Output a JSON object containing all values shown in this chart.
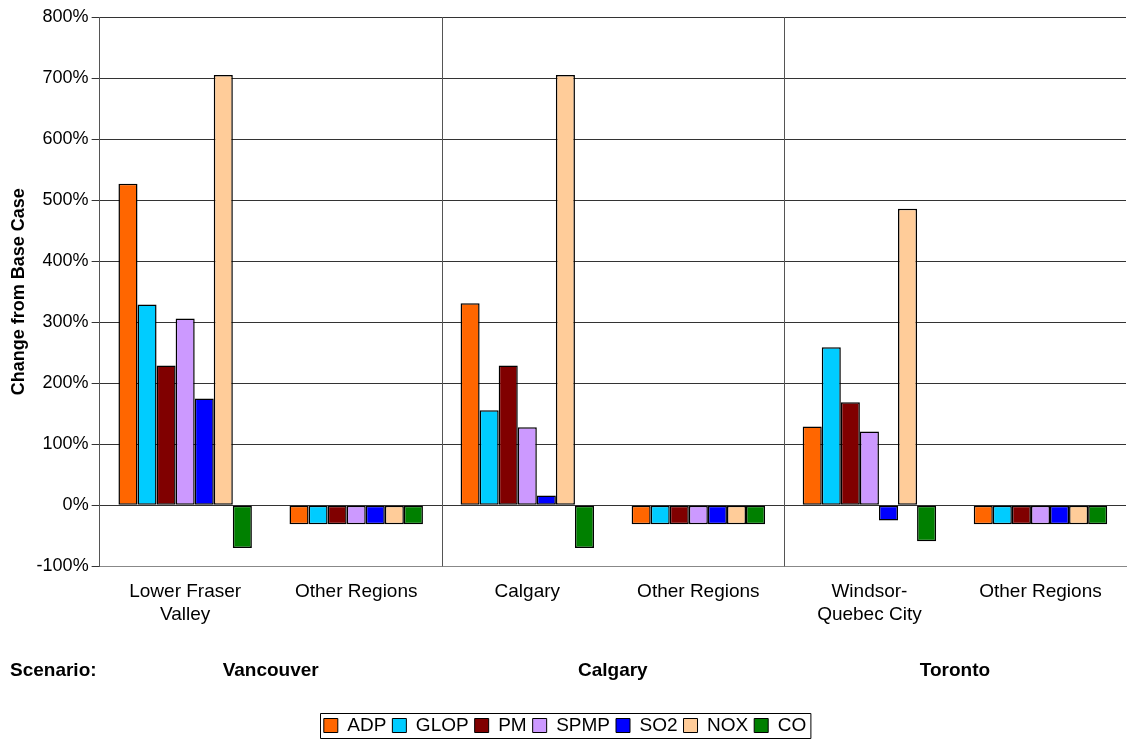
{
  "chart_data": {
    "type": "bar",
    "ylabel": "Change from Base Case",
    "categories": [
      "Lower Fraser Valley",
      "Other Regions",
      "Calgary",
      "Other Regions",
      "Windsor-Quebec City",
      "Other Regions"
    ],
    "series": [
      {
        "name": "ADP",
        "color": "#ff6600",
        "values": [
          527,
          -31,
          331,
          -31,
          129,
          -31
        ]
      },
      {
        "name": "GLOP",
        "color": "#00ccff",
        "values": [
          329,
          -31,
          156,
          -31,
          259,
          -31
        ]
      },
      {
        "name": "PM",
        "color": "#800000",
        "values": [
          229,
          -31,
          229,
          -31,
          169,
          -31
        ]
      },
      {
        "name": "SPMP",
        "color": "#cc99ff",
        "values": [
          306,
          -31,
          128,
          -31,
          121,
          -31
        ]
      },
      {
        "name": "SO2",
        "color": "#0000ff",
        "values": [
          175,
          -31,
          16,
          -31,
          -25,
          -31
        ]
      },
      {
        "name": "NOX",
        "color": "#ffcc99",
        "values": [
          705,
          -31,
          705,
          -31,
          486,
          -31
        ]
      },
      {
        "name": "CO",
        "color": "#008000",
        "values": [
          -70,
          -31,
          -70,
          -31,
          -59,
          -31
        ]
      }
    ],
    "annotations": [
      "Scenario:",
      "Vancouver",
      "Calgary",
      "Toronto"
    ],
    "ylim": [
      -100,
      800
    ],
    "yticks": [
      {
        "value": -100,
        "label": "-100%"
      },
      {
        "value": 0,
        "label": "0%"
      },
      {
        "value": 100,
        "label": "100%"
      },
      {
        "value": 200,
        "label": "200%"
      },
      {
        "value": 300,
        "label": "300%"
      },
      {
        "value": 400,
        "label": "400%"
      },
      {
        "value": 500,
        "label": "500%"
      },
      {
        "value": 600,
        "label": "600%"
      },
      {
        "value": 700,
        "label": "700%"
      },
      {
        "value": 800,
        "label": "800%"
      }
    ],
    "grid": "y",
    "legend": "bottom"
  }
}
